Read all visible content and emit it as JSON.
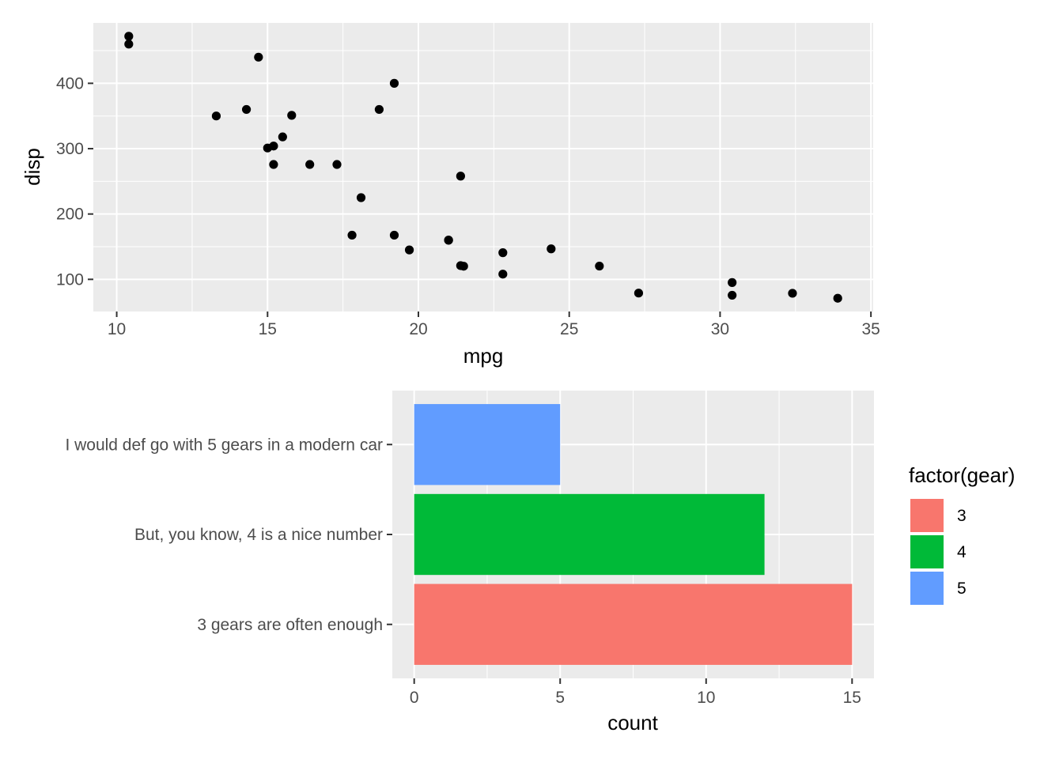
{
  "chart_data": [
    {
      "type": "scatter",
      "title": "",
      "xlabel": "mpg",
      "ylabel": "disp",
      "xlim": [
        9.225,
        35.075
      ],
      "ylim": [
        50.8,
        492.4
      ],
      "grid": true,
      "x_ticks": [
        10,
        15,
        20,
        25,
        30,
        35
      ],
      "y_ticks": [
        100,
        200,
        300,
        400
      ],
      "x_tick_labels": [
        "10",
        "15",
        "20",
        "25",
        "30",
        "35"
      ],
      "y_tick_labels": [
        "100",
        "200",
        "300",
        "400"
      ],
      "point_color": "#000000",
      "x": [
        21.0,
        21.0,
        22.8,
        21.4,
        18.7,
        18.1,
        14.3,
        24.4,
        22.8,
        19.2,
        17.8,
        16.4,
        17.3,
        15.2,
        10.4,
        10.4,
        14.7,
        32.4,
        30.4,
        33.9,
        21.5,
        15.5,
        15.2,
        13.3,
        19.2,
        27.3,
        26.0,
        30.4,
        15.8,
        19.7,
        15.0,
        21.4
      ],
      "y": [
        160,
        160,
        108,
        258,
        360,
        225,
        360,
        146.7,
        140.8,
        167.6,
        167.6,
        275.8,
        275.8,
        275.8,
        472,
        460,
        440,
        78.7,
        75.7,
        71.1,
        120.1,
        318,
        304,
        350,
        400,
        79,
        120.3,
        95.1,
        351,
        145,
        301,
        121
      ]
    },
    {
      "type": "bar",
      "orientation": "horizontal",
      "title": "",
      "xlabel": "count",
      "ylabel": "",
      "xlim": [
        -0.75,
        15.75
      ],
      "grid": true,
      "x_ticks": [
        0,
        5,
        10,
        15
      ],
      "x_tick_labels": [
        "0",
        "5",
        "10",
        "15"
      ],
      "categories": [
        "I would def go with 5 gears in a modern car",
        "But, you know, 4 is a nice number",
        "3 gears are often enough"
      ],
      "values": [
        5,
        12,
        15
      ],
      "series_keys": [
        "5",
        "4",
        "3"
      ],
      "colors": [
        "#619CFF",
        "#00BA38",
        "#F8766D"
      ],
      "legend": {
        "title": "factor(gear)",
        "position": "right",
        "entries": [
          {
            "label": "3",
            "color": "#F8766D"
          },
          {
            "label": "4",
            "color": "#00BA38"
          },
          {
            "label": "5",
            "color": "#619CFF"
          }
        ]
      }
    }
  ]
}
